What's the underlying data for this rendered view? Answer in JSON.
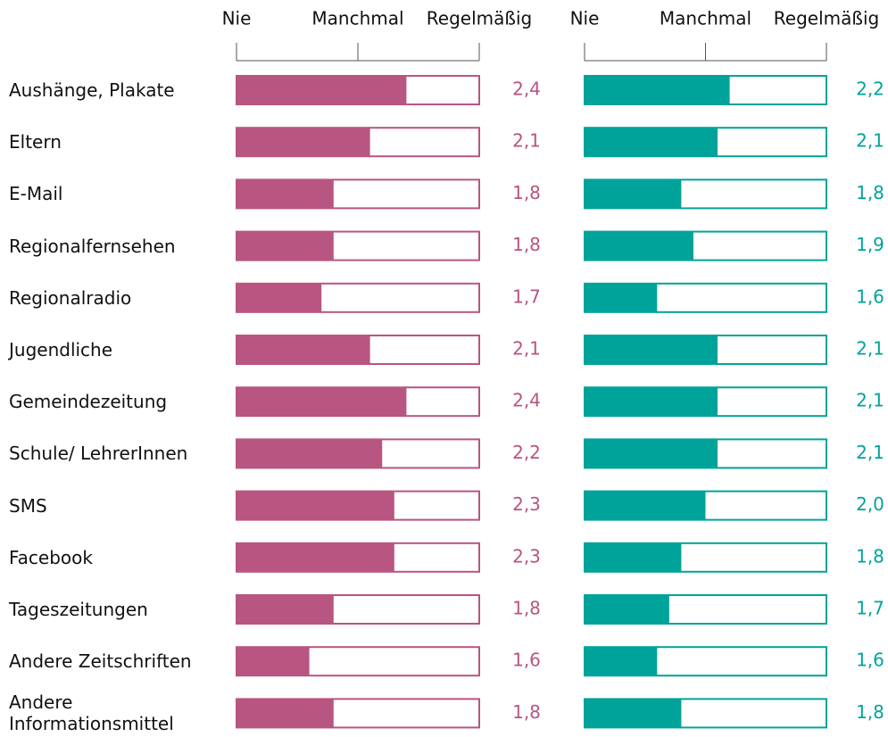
{
  "chart_data": {
    "type": "bar",
    "categories": [
      "Aushänge, Plakate",
      "Eltern",
      "E-Mail",
      "Regionalfernsehen",
      "Regionalradio",
      "Jugendliche",
      "Gemeindezeitung",
      "Schule/ LehrerInnen",
      "SMS",
      "Facebook",
      "Tageszeitungen",
      "Andere Zeitschriften",
      "Andere\nInformationsmittel"
    ],
    "xlim": [
      1,
      3
    ],
    "xticks": [
      {
        "value": 1,
        "label": "Nie"
      },
      {
        "value": 2,
        "label": "Manchmal"
      },
      {
        "value": 3,
        "label": "Regelmäßig"
      }
    ],
    "series": [
      {
        "color": "#b85581",
        "values": [
          2.4,
          2.1,
          1.8,
          1.8,
          1.7,
          2.1,
          2.4,
          2.2,
          2.3,
          2.3,
          1.8,
          1.6,
          1.8
        ],
        "value_labels": [
          "2,4",
          "2,1",
          "1,8",
          "1,8",
          "1,7",
          "2,1",
          "2,4",
          "2,2",
          "2,3",
          "2,3",
          "1,8",
          "1,6",
          "1,8"
        ]
      },
      {
        "color": "#00a39a",
        "values": [
          2.2,
          2.1,
          1.8,
          1.9,
          1.6,
          2.1,
          2.1,
          2.1,
          2.0,
          1.8,
          1.7,
          1.6,
          1.8
        ],
        "value_labels": [
          "2,2",
          "2,1",
          "1,8",
          "1,9",
          "1,6",
          "2,1",
          "2,1",
          "2,1",
          "2,0",
          "1,8",
          "1,7",
          "1,6",
          "1,8"
        ]
      }
    ]
  }
}
